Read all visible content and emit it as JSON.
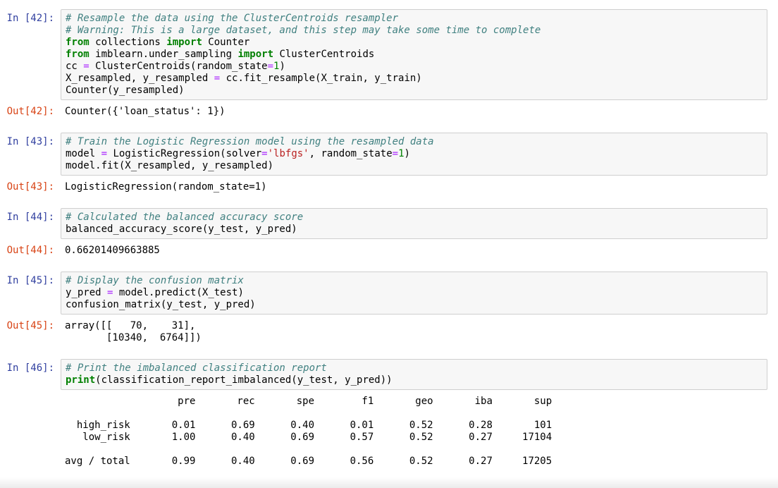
{
  "colors": {
    "in_prompt": "#303F9F",
    "out_prompt": "#D84315",
    "input_bg": "#f7f7f7",
    "input_border": "#cfcfcf",
    "comment": "#408080",
    "keyword": "#008000",
    "operator": "#AA22FF",
    "number": "#008000",
    "string": "#BA2121"
  },
  "notebook": {
    "cells": [
      {
        "in_prompt": "In [42]:",
        "out_prompt": "Out[42]:",
        "code": [
          [
            {
              "t": "# Resample the data using the ClusterCentroids resampler",
              "c": "comment"
            }
          ],
          [
            {
              "t": "# Warning: This is a large dataset, and this step may take some time to complete",
              "c": "comment"
            }
          ],
          [
            {
              "t": "from",
              "c": "keyword"
            },
            {
              "t": " collections ",
              "c": "plain"
            },
            {
              "t": "import",
              "c": "keyword"
            },
            {
              "t": " Counter",
              "c": "plain"
            }
          ],
          [
            {
              "t": "from",
              "c": "keyword"
            },
            {
              "t": " imblearn.under_sampling ",
              "c": "plain"
            },
            {
              "t": "import",
              "c": "keyword"
            },
            {
              "t": " ClusterCentroids",
              "c": "plain"
            }
          ],
          [
            {
              "t": "cc ",
              "c": "plain"
            },
            {
              "t": "=",
              "c": "op"
            },
            {
              "t": " ClusterCentroids(random_state",
              "c": "plain"
            },
            {
              "t": "=",
              "c": "op"
            },
            {
              "t": "1",
              "c": "number"
            },
            {
              "t": ")",
              "c": "plain"
            }
          ],
          [
            {
              "t": "X_resampled, y_resampled ",
              "c": "plain"
            },
            {
              "t": "=",
              "c": "op"
            },
            {
              "t": " cc.fit_resample(X_train, y_train)",
              "c": "plain"
            }
          ],
          [
            {
              "t": "Counter(y_resampled)",
              "c": "plain"
            }
          ]
        ],
        "output": {
          "type": "text",
          "lines": [
            "Counter({'loan_status': 1})"
          ]
        }
      },
      {
        "in_prompt": "In [43]:",
        "out_prompt": "Out[43]:",
        "code": [
          [
            {
              "t": "# Train the Logistic Regression model using the resampled data",
              "c": "comment"
            }
          ],
          [
            {
              "t": "model ",
              "c": "plain"
            },
            {
              "t": "=",
              "c": "op"
            },
            {
              "t": " LogisticRegression(solver",
              "c": "plain"
            },
            {
              "t": "=",
              "c": "op"
            },
            {
              "t": "'lbfgs'",
              "c": "string"
            },
            {
              "t": ", random_state",
              "c": "plain"
            },
            {
              "t": "=",
              "c": "op"
            },
            {
              "t": "1",
              "c": "number"
            },
            {
              "t": ")",
              "c": "plain"
            }
          ],
          [
            {
              "t": "model.fit(X_resampled, y_resampled)",
              "c": "plain"
            }
          ]
        ],
        "output": {
          "type": "text",
          "lines": [
            "LogisticRegression(random_state=1)"
          ]
        }
      },
      {
        "in_prompt": "In [44]:",
        "out_prompt": "Out[44]:",
        "code": [
          [
            {
              "t": "# Calculated the balanced accuracy score",
              "c": "comment"
            }
          ],
          [
            {
              "t": "balanced_accuracy_score(y_test, y_pred)",
              "c": "plain"
            }
          ]
        ],
        "output": {
          "type": "text",
          "lines": [
            "0.66201409663885"
          ]
        }
      },
      {
        "in_prompt": "In [45]:",
        "out_prompt": "Out[45]:",
        "code": [
          [
            {
              "t": "# Display the confusion matrix",
              "c": "comment"
            }
          ],
          [
            {
              "t": "y_pred ",
              "c": "plain"
            },
            {
              "t": "=",
              "c": "op"
            },
            {
              "t": " model.predict(X_test)",
              "c": "plain"
            }
          ],
          [
            {
              "t": "confusion_matrix(y_test, y_pred)",
              "c": "plain"
            }
          ]
        ],
        "output": {
          "type": "text",
          "lines": [
            "array([[   70,    31],",
            "       [10340,  6764]])"
          ]
        }
      },
      {
        "in_prompt": "In [46]:",
        "out_prompt": null,
        "code": [
          [
            {
              "t": "# Print the imbalanced classification report",
              "c": "comment"
            }
          ],
          [
            {
              "t": "print",
              "c": "keyword"
            },
            {
              "t": "(classification_report_imbalanced(y_test, y_pred))",
              "c": "plain"
            }
          ]
        ],
        "output": {
          "type": "report",
          "report": {
            "headers": [
              "pre",
              "rec",
              "spe",
              "f1",
              "geo",
              "iba",
              "sup"
            ],
            "class_rows": [
              {
                "label": "high_risk",
                "values": [
                  "0.01",
                  "0.69",
                  "0.40",
                  "0.01",
                  "0.52",
                  "0.28",
                  "101"
                ]
              },
              {
                "label": "low_risk",
                "values": [
                  "1.00",
                  "0.40",
                  "0.69",
                  "0.57",
                  "0.52",
                  "0.27",
                  "17104"
                ]
              }
            ],
            "total_row": {
              "label": "avg / total",
              "values": [
                "0.99",
                "0.40",
                "0.69",
                "0.56",
                "0.52",
                "0.27",
                "17205"
              ]
            },
            "label_col_width": 11,
            "first_val_col_width": 11,
            "val_col_width": 10
          }
        }
      }
    ]
  }
}
